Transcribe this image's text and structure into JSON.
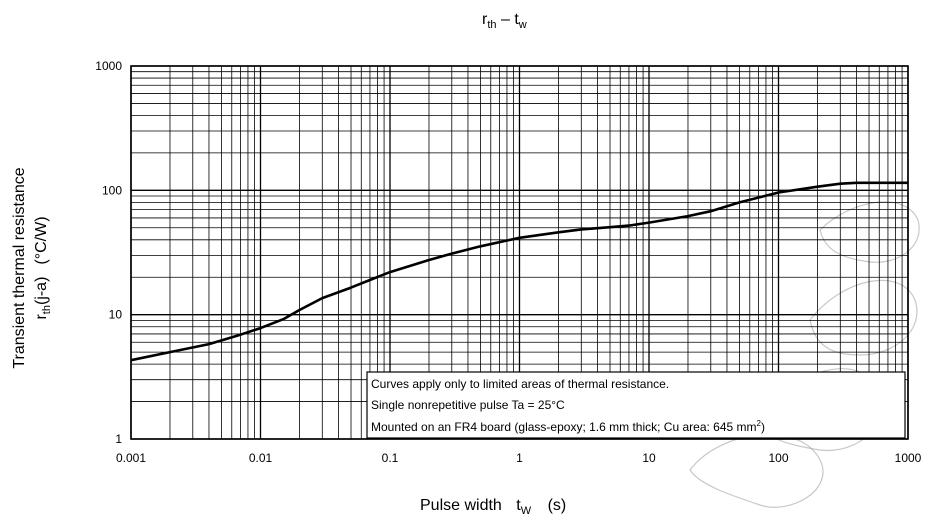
{
  "chart_data": {
    "type": "line",
    "title": "rth – tw",
    "title_parts": {
      "main_r": "r",
      "main_r_sub": "th",
      "dash": " – ",
      "main_t": "t",
      "main_t_sub": "w"
    },
    "xlabel": "Pulse width   tw   (s)",
    "xlabel_parts": {
      "pre": "Pulse width",
      "t": "t",
      "t_sub": "W",
      "unit": "(s)"
    },
    "ylabel": "Transient thermal resistance rth(j-a) (°C/W)",
    "ylabel_parts": {
      "line1": "Transient thermal resistance",
      "r": "r",
      "r_sub": "th",
      "post": "(j-a)",
      "unit": "(°C/W)"
    },
    "x_scale": "log",
    "y_scale": "log",
    "xlim": [
      0.001,
      1000
    ],
    "ylim": [
      1,
      1000
    ],
    "grid": true,
    "x_ticks": [
      {
        "value": 0.001,
        "label": "0.001"
      },
      {
        "value": 0.01,
        "label": "0.01"
      },
      {
        "value": 0.1,
        "label": "0.1"
      },
      {
        "value": 1,
        "label": "1"
      },
      {
        "value": 10,
        "label": "10"
      },
      {
        "value": 100,
        "label": "100"
      },
      {
        "value": 1000,
        "label": "1000"
      }
    ],
    "y_ticks": [
      {
        "value": 1,
        "label": "1"
      },
      {
        "value": 10,
        "label": "10"
      },
      {
        "value": 100,
        "label": "100"
      },
      {
        "value": 1000,
        "label": "1000"
      }
    ],
    "series": [
      {
        "x": [
          0.001,
          0.002,
          0.004,
          0.007,
          0.01,
          0.015,
          0.02,
          0.03,
          0.05,
          0.07,
          0.1,
          0.2,
          0.3,
          0.5,
          1,
          2,
          3,
          5,
          7,
          10,
          20,
          30,
          50,
          100,
          200,
          300,
          400,
          700,
          1000
        ],
        "y": [
          4.3,
          5.0,
          5.8,
          6.9,
          7.8,
          9.2,
          10.9,
          13.6,
          16.5,
          19.0,
          22.0,
          27.5,
          31.0,
          35.5,
          41.5,
          46.0,
          48.5,
          50.5,
          52.0,
          55.0,
          62.0,
          68.0,
          80.0,
          96.0,
          107.0,
          113.0,
          115.0,
          115.0,
          115.0
        ],
        "color": "#000000"
      }
    ],
    "annotations": [
      "Curves apply only to limited areas of thermal resistance.",
      "Single nonrepetitive pulse    Ta = 25°C",
      "Mounted on an FR4 board (glass-epoxy; 1.6 mm thick; Cu area: 645 mm"
    ],
    "annotation_superscript": "2",
    "annotation_suffix": ")"
  }
}
